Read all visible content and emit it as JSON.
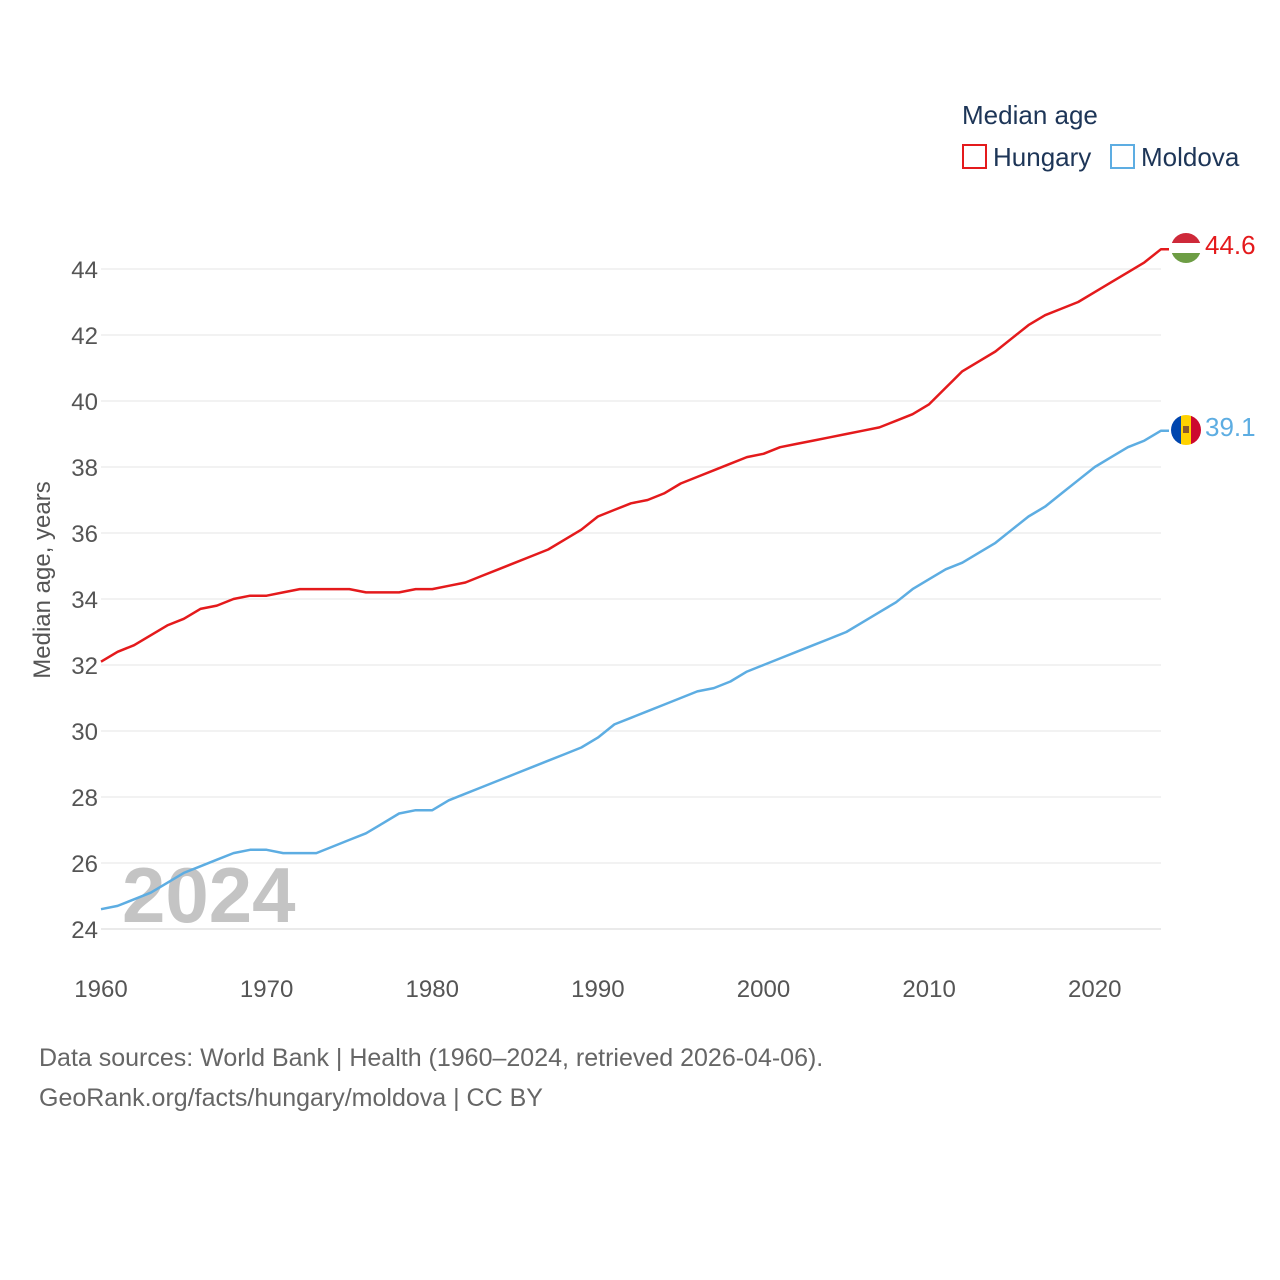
{
  "chart_data": {
    "type": "line",
    "legend_title": "Median age",
    "ylabel": "Median age, years",
    "xlabel": "",
    "watermark_year": "2024",
    "xlim": [
      1960,
      2024
    ],
    "ylim": [
      23.7,
      44.9
    ],
    "y_ticks": [
      24,
      26,
      28,
      30,
      32,
      34,
      36,
      38,
      40,
      42,
      44
    ],
    "x_ticks": [
      1960,
      1970,
      1980,
      1990,
      2000,
      2010,
      2020
    ],
    "grid": true,
    "legend_position": "top-right",
    "series": [
      {
        "name": "Hungary",
        "color": "#e41a1c",
        "end_label": "44.6",
        "flag": "hungary-flag",
        "x": [
          1960,
          1961,
          1962,
          1963,
          1964,
          1965,
          1966,
          1967,
          1968,
          1969,
          1970,
          1971,
          1972,
          1973,
          1974,
          1975,
          1976,
          1977,
          1978,
          1979,
          1980,
          1981,
          1982,
          1983,
          1984,
          1985,
          1986,
          1987,
          1988,
          1989,
          1990,
          1991,
          1992,
          1993,
          1994,
          1995,
          1996,
          1997,
          1998,
          1999,
          2000,
          2001,
          2002,
          2003,
          2004,
          2005,
          2006,
          2007,
          2008,
          2009,
          2010,
          2011,
          2012,
          2013,
          2014,
          2015,
          2016,
          2017,
          2018,
          2019,
          2020,
          2021,
          2022,
          2023,
          2024
        ],
        "values": [
          32.1,
          32.4,
          32.6,
          32.9,
          33.2,
          33.4,
          33.7,
          33.8,
          34.0,
          34.1,
          34.1,
          34.2,
          34.3,
          34.3,
          34.3,
          34.3,
          34.2,
          34.2,
          34.2,
          34.3,
          34.3,
          34.4,
          34.5,
          34.7,
          34.9,
          35.1,
          35.3,
          35.5,
          35.8,
          36.1,
          36.5,
          36.7,
          36.9,
          37.0,
          37.2,
          37.5,
          37.7,
          37.9,
          38.1,
          38.3,
          38.4,
          38.6,
          38.7,
          38.8,
          38.9,
          39.0,
          39.1,
          39.2,
          39.4,
          39.6,
          39.9,
          40.4,
          40.9,
          41.2,
          41.5,
          41.9,
          42.3,
          42.6,
          42.8,
          43.0,
          43.3,
          43.6,
          43.9,
          44.2,
          44.6
        ]
      },
      {
        "name": "Moldova",
        "color": "#5dade2",
        "end_label": "39.1",
        "flag": "moldova-flag",
        "x": [
          1960,
          1961,
          1962,
          1963,
          1964,
          1965,
          1966,
          1967,
          1968,
          1969,
          1970,
          1971,
          1972,
          1973,
          1974,
          1975,
          1976,
          1977,
          1978,
          1979,
          1980,
          1981,
          1982,
          1983,
          1984,
          1985,
          1986,
          1987,
          1988,
          1989,
          1990,
          1991,
          1992,
          1993,
          1994,
          1995,
          1996,
          1997,
          1998,
          1999,
          2000,
          2001,
          2002,
          2003,
          2004,
          2005,
          2006,
          2007,
          2008,
          2009,
          2010,
          2011,
          2012,
          2013,
          2014,
          2015,
          2016,
          2017,
          2018,
          2019,
          2020,
          2021,
          2022,
          2023,
          2024
        ],
        "values": [
          24.6,
          24.7,
          24.9,
          25.1,
          25.4,
          25.7,
          25.9,
          26.1,
          26.3,
          26.4,
          26.4,
          26.3,
          26.3,
          26.3,
          26.5,
          26.7,
          26.9,
          27.2,
          27.5,
          27.6,
          27.6,
          27.9,
          28.1,
          28.3,
          28.5,
          28.7,
          28.9,
          29.1,
          29.3,
          29.5,
          29.8,
          30.2,
          30.4,
          30.6,
          30.8,
          31.0,
          31.2,
          31.3,
          31.5,
          31.8,
          32.0,
          32.2,
          32.4,
          32.6,
          32.8,
          33.0,
          33.3,
          33.6,
          33.9,
          34.3,
          34.6,
          34.9,
          35.1,
          35.4,
          35.7,
          36.1,
          36.5,
          36.8,
          37.2,
          37.6,
          38.0,
          38.3,
          38.6,
          38.8,
          39.1
        ]
      }
    ]
  },
  "footer": {
    "source_line": "Data sources: World Bank | Health (1960–2024, retrieved 2026-04-06).",
    "credit_line": "GeoRank.org/facts/hungary/moldova | CC BY"
  }
}
